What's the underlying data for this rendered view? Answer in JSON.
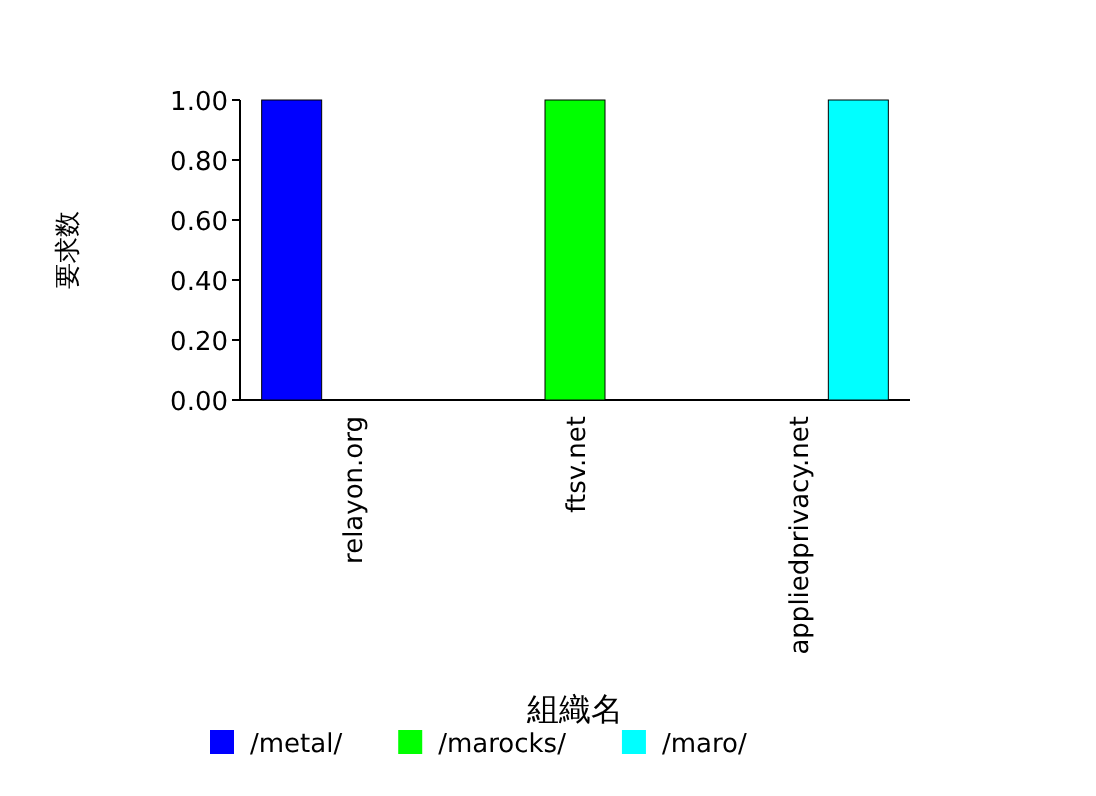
{
  "chart_data": {
    "type": "bar",
    "xlabel": "組織名",
    "ylabel": "要求数",
    "categories": [
      "relayon.org",
      "ftsv.net",
      "appliedprivacy.net"
    ],
    "series": [
      {
        "name": "/metal/",
        "color": "#0000ff",
        "values": [
          1,
          0,
          0
        ]
      },
      {
        "name": "/marocks/",
        "color": "#00ff00",
        "values": [
          0,
          1,
          0
        ]
      },
      {
        "name": "/maro/",
        "color": "#00ffff",
        "values": [
          0,
          0,
          1
        ]
      }
    ],
    "ylim": [
      0,
      1
    ],
    "yticks": [
      {
        "value": 0,
        "label": "0.00"
      },
      {
        "value": 0.2,
        "label": "0.20"
      },
      {
        "value": 0.4,
        "label": "0.40"
      },
      {
        "value": 0.6,
        "label": "0.60"
      },
      {
        "value": 0.8,
        "label": "0.80"
      },
      {
        "value": 1,
        "label": "1.00"
      }
    ],
    "grid": false,
    "legend": "bottom"
  }
}
